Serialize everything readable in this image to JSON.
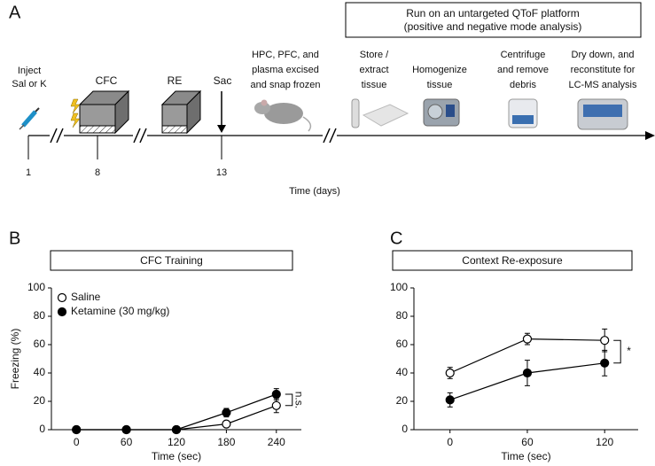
{
  "panel_a": {
    "label": "A",
    "box": [
      "Run on an untargeted QToF platform",
      "(positive and negative mode analysis)"
    ],
    "steps": [
      [
        "Inject",
        "Sal or K"
      ],
      [
        "CFC"
      ],
      [
        "RE"
      ],
      [
        "Sac"
      ],
      [
        "HPC, PFC, and",
        "plasma excised",
        "and snap frozen"
      ],
      [
        "Store /",
        "extract",
        "tissue"
      ],
      [
        "Homogenize",
        "tissue"
      ],
      [
        "Centrifuge",
        "and remove",
        "debris"
      ],
      [
        "Dry down, and",
        "reconstitute for",
        "LC-MS analysis"
      ]
    ],
    "ticks": [
      "1",
      "8",
      "13"
    ],
    "axis_label": "Time (days)"
  },
  "chart_data": [
    {
      "type": "line",
      "panel": "B",
      "title": "CFC Training",
      "xlabel": "Time (sec)",
      "ylabel": "Freezing (%)",
      "x": [
        0,
        60,
        120,
        180,
        240
      ],
      "xlim": [
        -30,
        270
      ],
      "xticks": [
        0,
        60,
        120,
        180,
        240
      ],
      "ylim": [
        0,
        100
      ],
      "yticks": [
        0,
        20,
        40,
        60,
        80,
        100
      ],
      "legend": "upper left",
      "annotation": "n.s.",
      "series": [
        {
          "name": "Saline",
          "color": "#000000",
          "marker": "open",
          "values": [
            0,
            0,
            0,
            4,
            17
          ],
          "errors": [
            0,
            0,
            0,
            1.5,
            5
          ]
        },
        {
          "name": "Ketamine (30 mg/kg)",
          "color": "#000000",
          "marker": "filled",
          "values": [
            0,
            0,
            0,
            12,
            25
          ],
          "errors": [
            0,
            0,
            0,
            3,
            4
          ]
        }
      ]
    },
    {
      "type": "line",
      "panel": "C",
      "title": "Context Re-exposure",
      "xlabel": "Time (sec)",
      "x": [
        0,
        60,
        120
      ],
      "xlim": [
        -28,
        146
      ],
      "xticks": [
        0,
        60,
        120
      ],
      "ylim": [
        0,
        100
      ],
      "yticks": [
        0,
        20,
        40,
        60,
        80,
        100
      ],
      "annotation": "*",
      "series": [
        {
          "color": "#000000",
          "marker": "open",
          "values": [
            40,
            64,
            63
          ],
          "errors": [
            4,
            4,
            8
          ]
        },
        {
          "color": "#000000",
          "marker": "filled",
          "values": [
            21,
            40,
            47
          ],
          "errors": [
            5,
            9,
            9
          ]
        }
      ]
    }
  ]
}
